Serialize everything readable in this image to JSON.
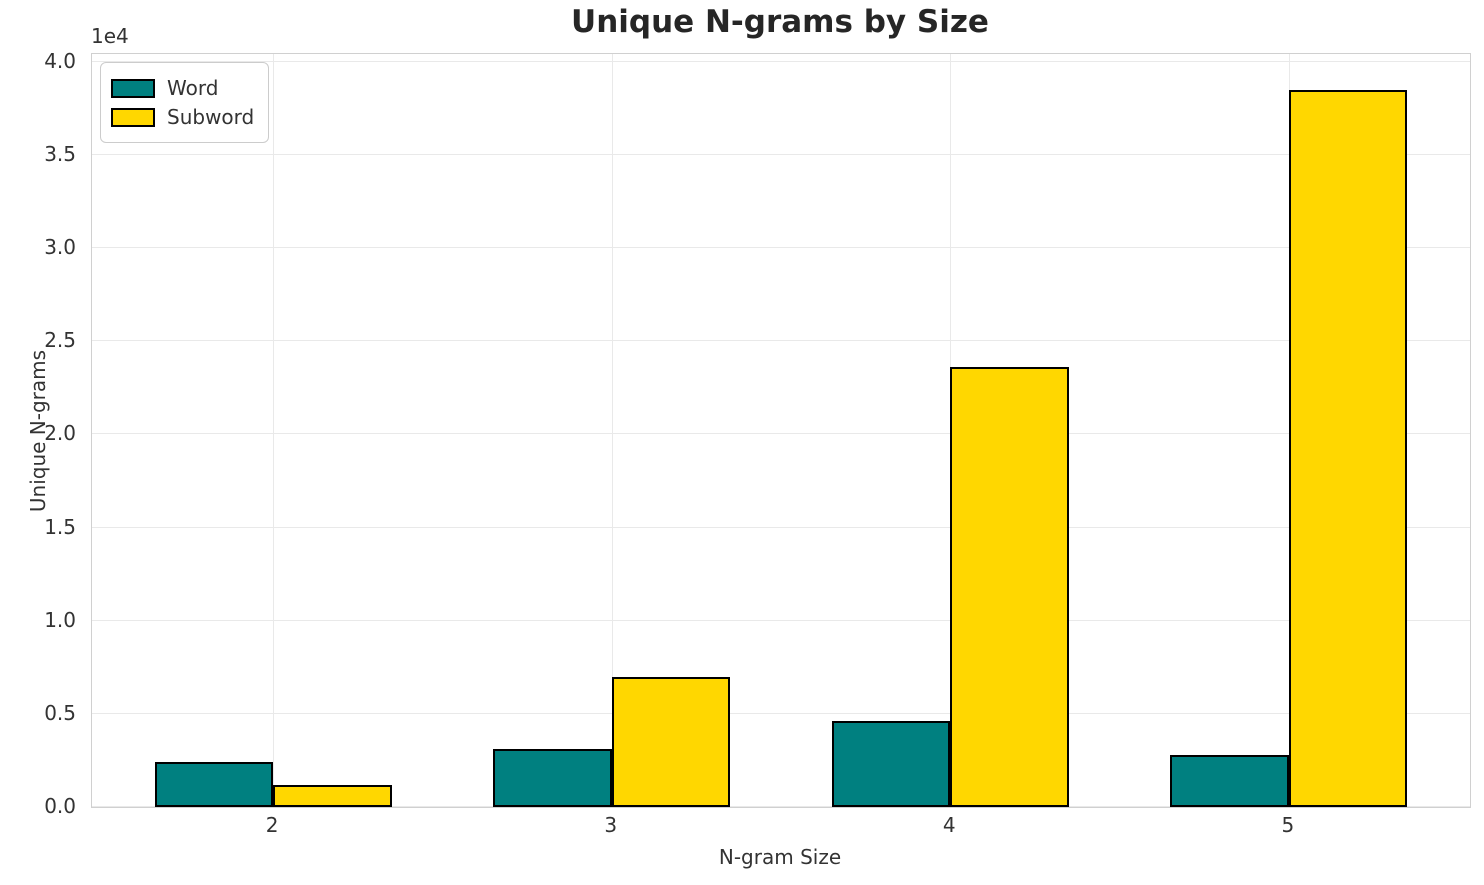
{
  "chart_data": {
    "type": "bar",
    "title": "Unique N-grams by Size",
    "xlabel": "N-gram Size",
    "ylabel": "Unique N-grams",
    "offset_text": "1e4",
    "categories": [
      2,
      3,
      4,
      5
    ],
    "series": [
      {
        "name": "Word",
        "color": "#008080",
        "values": [
          2400,
          3100,
          4600,
          2800
        ]
      },
      {
        "name": "Subword",
        "color": "#FFD700",
        "values": [
          1200,
          7000,
          23600,
          38500
        ]
      }
    ],
    "bar_width": 0.35,
    "bar_edge_color": "#000000",
    "xlim": [
      1.465,
      5.535
    ],
    "ylim": [
      0,
      40425
    ],
    "yticks": [
      0,
      5000,
      10000,
      15000,
      20000,
      25000,
      30000,
      35000,
      40000
    ],
    "ytick_labels": [
      "0.0",
      "0.5",
      "1.0",
      "1.5",
      "2.0",
      "2.5",
      "3.0",
      "3.5",
      "4.0"
    ],
    "grid": true,
    "legend_position": "upper left"
  }
}
